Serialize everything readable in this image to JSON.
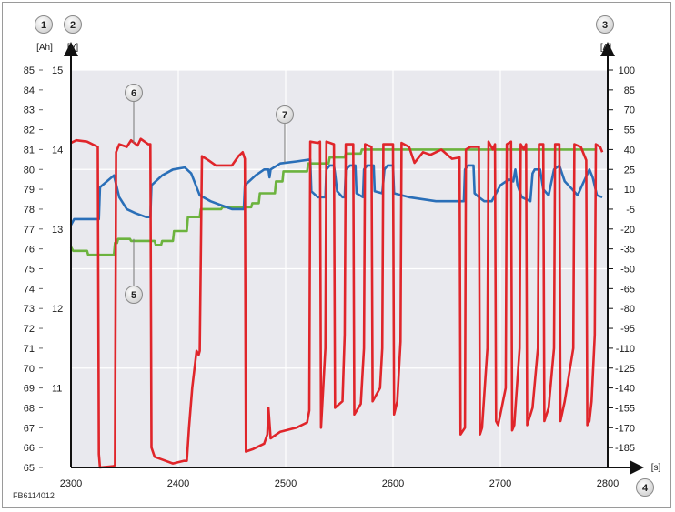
{
  "figure_id": "FB6114012",
  "chart_data": {
    "type": "line",
    "x": {
      "label": "[s]",
      "min": 2300,
      "max": 2800,
      "ticks": [
        2300,
        2400,
        2500,
        2600,
        2700,
        2800
      ]
    },
    "axes": {
      "ah": {
        "number": "1",
        "label": "[Ah]",
        "min": 65,
        "max": 85,
        "ticks": [
          65,
          66,
          67,
          68,
          69,
          70,
          71,
          72,
          73,
          74,
          75,
          76,
          77,
          78,
          79,
          80,
          81,
          82,
          83,
          84,
          85
        ]
      },
      "v": {
        "number": "2",
        "label": "[V]",
        "ticks": [
          11,
          12,
          13,
          14,
          15
        ]
      },
      "a": {
        "number": "3",
        "label": "[A]",
        "min": -200,
        "max": 100,
        "ticks": [
          100,
          85,
          70,
          55,
          40,
          25,
          10,
          -5,
          -20,
          -35,
          -50,
          -65,
          -80,
          -95,
          -110,
          -125,
          -140,
          -155,
          -170,
          -185
        ]
      },
      "x_number": "4"
    },
    "callouts": [
      {
        "number": "5",
        "target": "green"
      },
      {
        "number": "6",
        "target": "red"
      },
      {
        "number": "7",
        "target": "blue"
      }
    ],
    "series": [
      {
        "key": "green",
        "axis": "ah",
        "color": "#6cb33e",
        "points": [
          [
            2300,
            76.1
          ],
          [
            2302,
            75.9
          ],
          [
            2315,
            75.9
          ],
          [
            2316,
            75.7
          ],
          [
            2340,
            75.7
          ],
          [
            2341,
            76.3
          ],
          [
            2343,
            76.3
          ],
          [
            2344,
            76.5
          ],
          [
            2355,
            76.5
          ],
          [
            2356,
            76.4
          ],
          [
            2378,
            76.4
          ],
          [
            2379,
            76.2
          ],
          [
            2384,
            76.2
          ],
          [
            2385,
            76.4
          ],
          [
            2395,
            76.4
          ],
          [
            2396,
            76.9
          ],
          [
            2408,
            76.9
          ],
          [
            2409,
            77.6
          ],
          [
            2420,
            77.6
          ],
          [
            2421,
            78.0
          ],
          [
            2440,
            78.0
          ],
          [
            2441,
            78.1
          ],
          [
            2468,
            78.1
          ],
          [
            2469,
            78.3
          ],
          [
            2475,
            78.3
          ],
          [
            2476,
            78.8
          ],
          [
            2490,
            78.8
          ],
          [
            2491,
            79.4
          ],
          [
            2497,
            79.4
          ],
          [
            2498,
            79.9
          ],
          [
            2520,
            79.9
          ],
          [
            2521,
            80.3
          ],
          [
            2540,
            80.3
          ],
          [
            2541,
            80.6
          ],
          [
            2555,
            80.6
          ],
          [
            2556,
            80.8
          ],
          [
            2570,
            80.8
          ],
          [
            2571,
            81.0
          ],
          [
            2790,
            81.0
          ]
        ]
      },
      {
        "key": "blue",
        "axis": "v",
        "color": "#2a6fb8",
        "points": [
          [
            2300,
            77.2
          ],
          [
            2303,
            77.5
          ],
          [
            2326,
            77.5
          ],
          [
            2327,
            79.1
          ],
          [
            2340,
            79.7
          ],
          [
            2345,
            78.6
          ],
          [
            2352,
            78.0
          ],
          [
            2360,
            77.8
          ],
          [
            2370,
            77.6
          ],
          [
            2374,
            77.6
          ],
          [
            2375,
            79.2
          ],
          [
            2385,
            79.7
          ],
          [
            2395,
            80.0
          ],
          [
            2406,
            80.1
          ],
          [
            2412,
            79.8
          ],
          [
            2420,
            78.7
          ],
          [
            2430,
            78.4
          ],
          [
            2440,
            78.2
          ],
          [
            2450,
            78.0
          ],
          [
            2461,
            78.0
          ],
          [
            2462,
            79.2
          ],
          [
            2472,
            79.7
          ],
          [
            2480,
            80.0
          ],
          [
            2484,
            80.0
          ],
          [
            2485,
            79.6
          ],
          [
            2486,
            80.0
          ],
          [
            2495,
            80.3
          ],
          [
            2510,
            80.4
          ],
          [
            2523,
            80.5
          ],
          [
            2524,
            78.9
          ],
          [
            2530,
            78.6
          ],
          [
            2537,
            78.6
          ],
          [
            2538,
            80.0
          ],
          [
            2541,
            80.2
          ],
          [
            2545,
            80.2
          ],
          [
            2546,
            79.8
          ],
          [
            2548,
            78.9
          ],
          [
            2553,
            78.6
          ],
          [
            2555,
            78.6
          ],
          [
            2556,
            80.0
          ],
          [
            2560,
            80.2
          ],
          [
            2565,
            80.2
          ],
          [
            2566,
            78.8
          ],
          [
            2572,
            78.6
          ],
          [
            2573,
            80.0
          ],
          [
            2576,
            80.2
          ],
          [
            2582,
            80.2
          ],
          [
            2583,
            78.9
          ],
          [
            2590,
            78.8
          ],
          [
            2592,
            80.0
          ],
          [
            2595,
            80.2
          ],
          [
            2600,
            80.2
          ],
          [
            2601,
            78.8
          ],
          [
            2615,
            78.6
          ],
          [
            2640,
            78.4
          ],
          [
            2660,
            78.4
          ],
          [
            2666,
            78.4
          ],
          [
            2667,
            80.0
          ],
          [
            2670,
            80.2
          ],
          [
            2675,
            80.2
          ],
          [
            2676,
            78.8
          ],
          [
            2680,
            78.6
          ],
          [
            2685,
            78.4
          ],
          [
            2692,
            78.4
          ],
          [
            2700,
            79.2
          ],
          [
            2708,
            79.5
          ],
          [
            2712,
            79.4
          ],
          [
            2714,
            80.0
          ],
          [
            2716,
            79.2
          ],
          [
            2720,
            78.6
          ],
          [
            2728,
            78.4
          ],
          [
            2730,
            79.8
          ],
          [
            2732,
            80.0
          ],
          [
            2737,
            80.0
          ],
          [
            2740,
            79.0
          ],
          [
            2745,
            78.7
          ],
          [
            2750,
            80.0
          ],
          [
            2755,
            80.2
          ],
          [
            2760,
            79.4
          ],
          [
            2767,
            79.0
          ],
          [
            2772,
            78.7
          ],
          [
            2777,
            79.3
          ],
          [
            2783,
            80.0
          ],
          [
            2786,
            79.6
          ],
          [
            2790,
            78.7
          ],
          [
            2795,
            78.6
          ]
        ]
      },
      {
        "key": "red",
        "axis": "a",
        "color": "#e0252a",
        "points": [
          [
            2300,
            45
          ],
          [
            2305,
            47
          ],
          [
            2315,
            46
          ],
          [
            2325,
            42
          ],
          [
            2326,
            -190
          ],
          [
            2327,
            -200
          ],
          [
            2340,
            -199
          ],
          [
            2341,
            -198
          ],
          [
            2342,
            38
          ],
          [
            2345,
            44
          ],
          [
            2352,
            42
          ],
          [
            2356,
            47
          ],
          [
            2362,
            43
          ],
          [
            2365,
            48
          ],
          [
            2372,
            44
          ],
          [
            2374,
            44
          ],
          [
            2375,
            -185
          ],
          [
            2378,
            -192
          ],
          [
            2385,
            -194
          ],
          [
            2395,
            -197
          ],
          [
            2405,
            -195
          ],
          [
            2408,
            -195
          ],
          [
            2410,
            -170
          ],
          [
            2413,
            -140
          ],
          [
            2417,
            -112
          ],
          [
            2419,
            -115
          ],
          [
            2420,
            -112
          ],
          [
            2422,
            35
          ],
          [
            2428,
            32
          ],
          [
            2435,
            28
          ],
          [
            2442,
            28
          ],
          [
            2450,
            28
          ],
          [
            2456,
            35
          ],
          [
            2460,
            38
          ],
          [
            2462,
            33
          ],
          [
            2463,
            -188
          ],
          [
            2470,
            -186
          ],
          [
            2480,
            -182
          ],
          [
            2483,
            -175
          ],
          [
            2484,
            -155
          ],
          [
            2486,
            -178
          ],
          [
            2495,
            -173
          ],
          [
            2510,
            -170
          ],
          [
            2520,
            -166
          ],
          [
            2522,
            -157
          ],
          [
            2523,
            46
          ],
          [
            2530,
            45
          ],
          [
            2532,
            46
          ],
          [
            2533,
            -170
          ],
          [
            2534,
            -155
          ],
          [
            2537,
            -110
          ],
          [
            2538,
            46
          ],
          [
            2545,
            44
          ],
          [
            2546,
            -155
          ],
          [
            2553,
            -150
          ],
          [
            2555,
            -100
          ],
          [
            2556,
            44
          ],
          [
            2563,
            44
          ],
          [
            2564,
            -160
          ],
          [
            2570,
            -152
          ],
          [
            2573,
            -110
          ],
          [
            2574,
            44
          ],
          [
            2580,
            42
          ],
          [
            2581,
            -150
          ],
          [
            2588,
            -140
          ],
          [
            2590,
            -110
          ],
          [
            2591,
            44
          ],
          [
            2600,
            44
          ],
          [
            2601,
            -160
          ],
          [
            2604,
            -150
          ],
          [
            2607,
            -105
          ],
          [
            2608,
            45
          ],
          [
            2615,
            42
          ],
          [
            2620,
            30
          ],
          [
            2628,
            38
          ],
          [
            2635,
            36
          ],
          [
            2645,
            40
          ],
          [
            2655,
            33
          ],
          [
            2662,
            34
          ],
          [
            2663,
            -175
          ],
          [
            2667,
            -170
          ],
          [
            2668,
            40
          ],
          [
            2672,
            42
          ],
          [
            2680,
            42
          ],
          [
            2681,
            -175
          ],
          [
            2683,
            -170
          ],
          [
            2688,
            -110
          ],
          [
            2689,
            46
          ],
          [
            2693,
            40
          ],
          [
            2695,
            44
          ],
          [
            2696,
            -165
          ],
          [
            2698,
            -168
          ],
          [
            2705,
            -140
          ],
          [
            2706,
            44
          ],
          [
            2710,
            46
          ],
          [
            2711,
            -172
          ],
          [
            2713,
            -168
          ],
          [
            2718,
            -110
          ],
          [
            2719,
            44
          ],
          [
            2722,
            40
          ],
          [
            2724,
            44
          ],
          [
            2725,
            -168
          ],
          [
            2730,
            -155
          ],
          [
            2735,
            -110
          ],
          [
            2736,
            44
          ],
          [
            2740,
            44
          ],
          [
            2741,
            -165
          ],
          [
            2745,
            -155
          ],
          [
            2750,
            -110
          ],
          [
            2751,
            44
          ],
          [
            2755,
            44
          ],
          [
            2756,
            -165
          ],
          [
            2760,
            -150
          ],
          [
            2768,
            -110
          ],
          [
            2769,
            44
          ],
          [
            2775,
            42
          ],
          [
            2780,
            32
          ],
          [
            2781,
            -168
          ],
          [
            2783,
            -165
          ],
          [
            2785,
            -150
          ],
          [
            2788,
            -100
          ],
          [
            2789,
            44
          ],
          [
            2793,
            42
          ],
          [
            2795,
            38
          ]
        ]
      }
    ]
  }
}
